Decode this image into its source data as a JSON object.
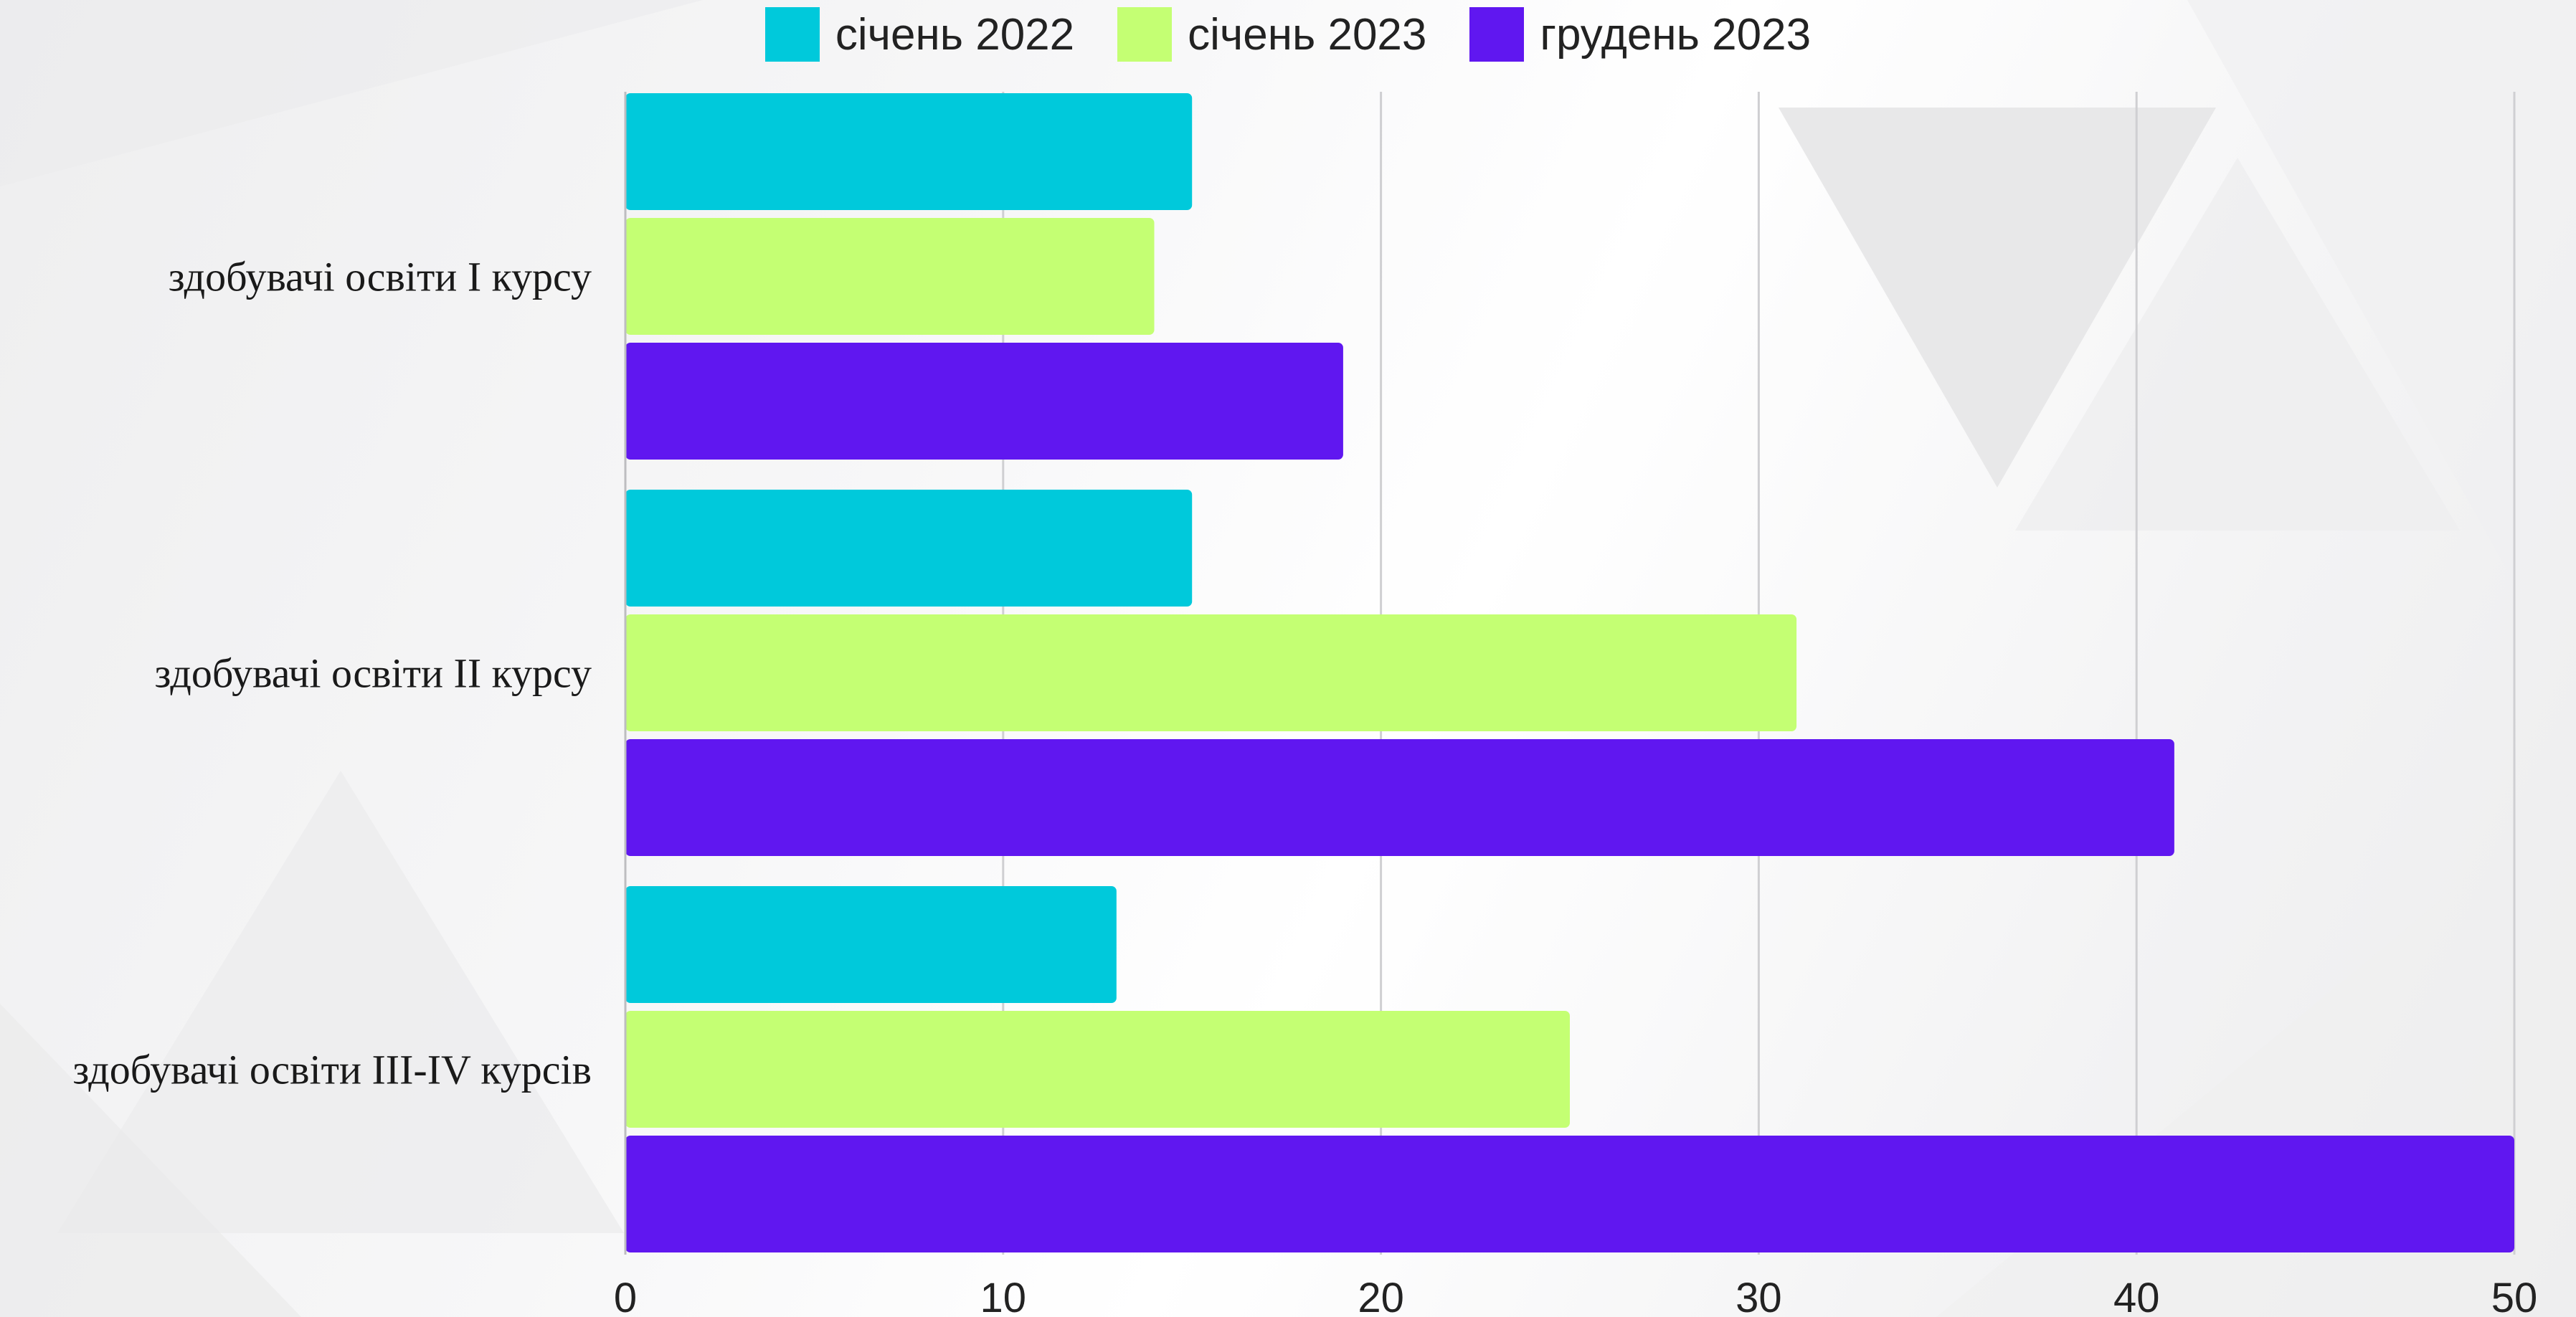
{
  "chart_data": {
    "type": "bar",
    "orientation": "horizontal",
    "title": "",
    "xlabel": "",
    "ylabel": "",
    "categories": [
      "здобувачі освіти I курсу",
      "здобувачі освіти II курсу",
      "здобувачі освіти III-IV курсів"
    ],
    "series": [
      {
        "name": "січень 2022",
        "color": "#00C9DB",
        "values": [
          15,
          15,
          13
        ]
      },
      {
        "name": "січень 2023",
        "color": "#C4FF73",
        "values": [
          14,
          31,
          25
        ]
      },
      {
        "name": "грудень 2023",
        "color": "#6017F0",
        "values": [
          19,
          41,
          50
        ]
      }
    ],
    "xlim": [
      0,
      50
    ],
    "xticks": [
      "0",
      "10",
      "20",
      "30",
      "40",
      "50"
    ],
    "grid": true,
    "legend_position": "top-center"
  }
}
